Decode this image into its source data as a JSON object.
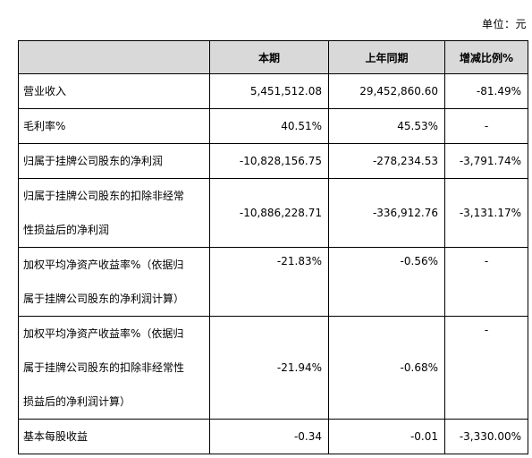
{
  "unit_label": "单位：元",
  "table": {
    "headers": [
      "",
      "本期",
      "上年同期",
      "增减比例%"
    ],
    "rows": [
      {
        "label_lines": [
          "营业收入"
        ],
        "current": "5,451,512.08",
        "previous": "29,452,860.60",
        "change": "-81.49%"
      },
      {
        "label_lines": [
          "毛利率%"
        ],
        "current": "40.51%",
        "previous": "45.53%",
        "change": "-"
      },
      {
        "label_lines": [
          "归属于挂牌公司股东的净利润"
        ],
        "current": "-10,828,156.75",
        "previous": "-278,234.53",
        "change": "-3,791.74%"
      },
      {
        "label_lines": [
          "归属于挂牌公司股东的扣除非经常",
          "性损益后的净利润"
        ],
        "current": "-10,886,228.71",
        "previous": "-336,912.76",
        "change": "-3,131.17%"
      },
      {
        "label_lines": [
          "加权平均净资产收益率%（依据归",
          "属于挂牌公司股东的净利润计算）"
        ],
        "current": "-21.83%",
        "previous": "-0.56%",
        "change": "-"
      },
      {
        "label_lines": [
          "加权平均净资产收益率%（依据归",
          "属于挂牌公司股东的扣除非经常性",
          "损益后的净利润计算）"
        ],
        "current": "-21.94%",
        "previous": "-0.68%",
        "change": "-"
      },
      {
        "label_lines": [
          "基本每股收益"
        ],
        "current": "-0.34",
        "previous": "-0.01",
        "change": "-3,330.00%"
      }
    ]
  }
}
